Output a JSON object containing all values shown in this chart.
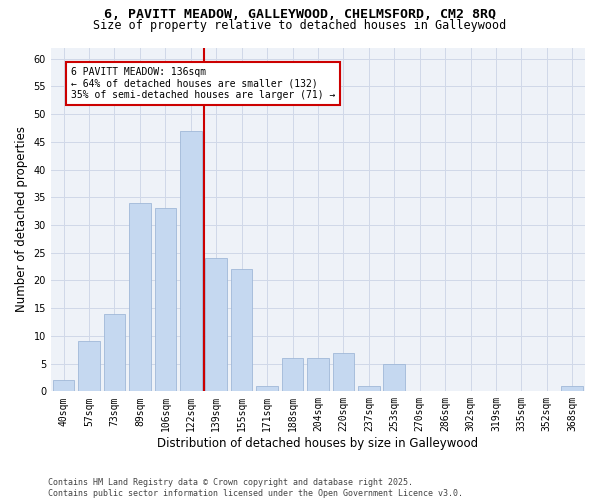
{
  "title_line1": "6, PAVITT MEADOW, GALLEYWOOD, CHELMSFORD, CM2 8RQ",
  "title_line2": "Size of property relative to detached houses in Galleywood",
  "xlabel": "Distribution of detached houses by size in Galleywood",
  "ylabel": "Number of detached properties",
  "categories": [
    "40sqm",
    "57sqm",
    "73sqm",
    "89sqm",
    "106sqm",
    "122sqm",
    "139sqm",
    "155sqm",
    "171sqm",
    "188sqm",
    "204sqm",
    "220sqm",
    "237sqm",
    "253sqm",
    "270sqm",
    "286sqm",
    "302sqm",
    "319sqm",
    "335sqm",
    "352sqm",
    "368sqm"
  ],
  "values": [
    2,
    9,
    14,
    34,
    33,
    47,
    24,
    22,
    1,
    6,
    6,
    7,
    1,
    5,
    0,
    0,
    0,
    0,
    0,
    0,
    1
  ],
  "bar_color": "#c5d8f0",
  "bar_edge_color": "#a0b8d8",
  "vline_color": "#cc0000",
  "annotation_text": "6 PAVITT MEADOW: 136sqm\n← 64% of detached houses are smaller (132)\n35% of semi-detached houses are larger (71) →",
  "annotation_box_color": "#cc0000",
  "ylim": [
    0,
    62
  ],
  "yticks": [
    0,
    5,
    10,
    15,
    20,
    25,
    30,
    35,
    40,
    45,
    50,
    55,
    60
  ],
  "grid_color": "#d0d8e8",
  "background_color": "#eef2f8",
  "footer_text": "Contains HM Land Registry data © Crown copyright and database right 2025.\nContains public sector information licensed under the Open Government Licence v3.0.",
  "title_fontsize": 9.5,
  "subtitle_fontsize": 8.5,
  "xlabel_fontsize": 8.5,
  "ylabel_fontsize": 8.5,
  "tick_fontsize": 7,
  "annotation_fontsize": 7,
  "footer_fontsize": 6
}
